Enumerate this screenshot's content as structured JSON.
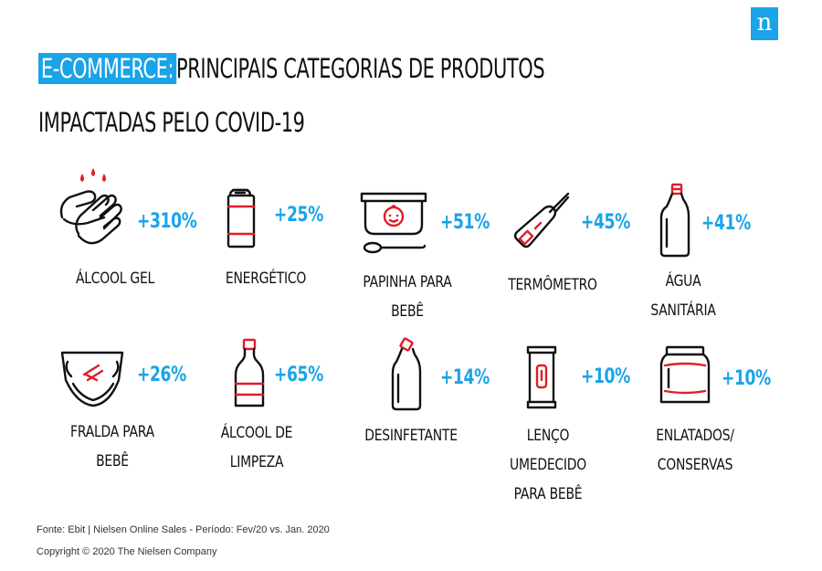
{
  "logo": {
    "text": "n",
    "color": "#1aa3e8"
  },
  "title": {
    "highlight": "E-COMMERCE:",
    "line1_rest": "PRINCIPAIS CATEGORIAS DE PRODUTOS",
    "line2": "IMPACTADAS PELO COVID-19"
  },
  "colors": {
    "accent": "#1aa3e8",
    "icon_red": "#e11d2a",
    "text": "#111111"
  },
  "items": [
    {
      "icon": "hand-sanitizer-icon",
      "pct": "+310%",
      "label": [
        "ÁLCOOL GEL"
      ]
    },
    {
      "icon": "energy-drink-can-icon",
      "pct": "+25%",
      "label": [
        "ENERGÉTICO"
      ]
    },
    {
      "icon": "baby-food-container-icon",
      "pct": "+51%",
      "label": [
        "PAPINHA PARA",
        "BEBÊ"
      ]
    },
    {
      "icon": "thermometer-icon",
      "pct": "+45%",
      "label": [
        "TERMÔMETRO"
      ]
    },
    {
      "icon": "bleach-bottle-icon",
      "pct": "+41%",
      "label": [
        "ÁGUA",
        "SANITÁRIA"
      ]
    },
    {
      "icon": "diaper-icon",
      "pct": "+26%",
      "label": [
        "FRALDA PARA",
        "BEBÊ"
      ]
    },
    {
      "icon": "alcohol-bottle-icon",
      "pct": "+65%",
      "label": [
        "ÁLCOOL DE",
        "LIMPEZA"
      ]
    },
    {
      "icon": "disinfectant-bottle-icon",
      "pct": "+14%",
      "label": [
        "DESINFETANTE"
      ]
    },
    {
      "icon": "wet-wipes-icon",
      "pct": "+10%",
      "label": [
        "LENÇO",
        "UMEDECIDO",
        "PARA BEBÊ"
      ]
    },
    {
      "icon": "canned-jar-icon",
      "pct": "+10%",
      "label": [
        "ENLATADOS/",
        "CONSERVAS"
      ]
    }
  ],
  "footer": {
    "source": "Fonte: Ebit | Nielsen Online Sales - Período:  Fev/20 vs. Jan. 2020",
    "copyright": "Copyright © 2020 The Nielsen Company"
  }
}
